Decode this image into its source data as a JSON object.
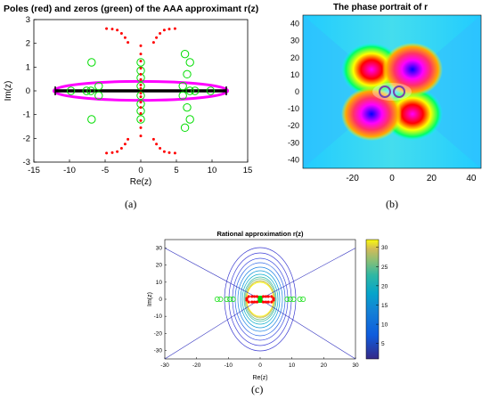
{
  "figure": {
    "captions": {
      "a": "(a)",
      "b": "(b)",
      "c": "(c)"
    }
  },
  "chart_data": [
    {
      "id": "a",
      "type": "scatter",
      "title": "Poles (red) and zeros (green) of the AAA approximant r(z)",
      "xlabel": "Re(z)",
      "ylabel": "Im(z)",
      "xlim": [
        -15,
        15
      ],
      "ylim": [
        -3,
        3
      ],
      "xticks": [
        "-15",
        "-10",
        "-5",
        "0",
        "5",
        "10",
        "15"
      ],
      "yticks": [
        "3",
        "2",
        "1",
        "0",
        "-1",
        "-2",
        "-3"
      ],
      "grid": false,
      "colors": {
        "poles": "#ff0000",
        "zeros": "#00dd00",
        "interval": "#000000",
        "contour": "#ff00ff"
      },
      "interval": [
        -12,
        12
      ],
      "contour_ellipse": {
        "center": [
          0,
          0
        ],
        "semi_axes": [
          12.2,
          0.4
        ]
      },
      "poles": [
        [
          -4.8,
          2.62
        ],
        [
          -4.0,
          2.6
        ],
        [
          -3.3,
          2.56
        ],
        [
          -2.7,
          2.42
        ],
        [
          -2.2,
          2.24
        ],
        [
          -1.8,
          2.04
        ],
        [
          4.8,
          2.62
        ],
        [
          4.0,
          2.6
        ],
        [
          3.3,
          2.56
        ],
        [
          2.7,
          2.42
        ],
        [
          2.2,
          2.24
        ],
        [
          1.8,
          2.04
        ],
        [
          -4.8,
          -2.62
        ],
        [
          -4.0,
          -2.6
        ],
        [
          -3.3,
          -2.56
        ],
        [
          -2.7,
          -2.42
        ],
        [
          -2.2,
          -2.24
        ],
        [
          -1.8,
          -2.04
        ],
        [
          4.8,
          -2.62
        ],
        [
          4.0,
          -2.6
        ],
        [
          3.3,
          -2.56
        ],
        [
          2.7,
          -2.42
        ],
        [
          2.2,
          -2.24
        ],
        [
          1.8,
          -2.04
        ],
        [
          0,
          1.9
        ],
        [
          0,
          1.55
        ],
        [
          0,
          1.25
        ],
        [
          0,
          0.95
        ],
        [
          0,
          0.7
        ],
        [
          0,
          0.48
        ],
        [
          0,
          0.25
        ],
        [
          0,
          0.1
        ],
        [
          0,
          -0.1
        ],
        [
          0,
          -0.25
        ],
        [
          0,
          -0.48
        ],
        [
          0,
          -0.7
        ],
        [
          0,
          -0.95
        ],
        [
          0,
          -1.25
        ],
        [
          0,
          -1.55
        ],
        [
          0,
          -1.9
        ]
      ],
      "zeros": [
        [
          -7.0,
          0
        ],
        [
          -7.6,
          0
        ],
        [
          -9.8,
          0
        ],
        [
          -6.9,
          1.2
        ],
        [
          -6.9,
          -1.2
        ],
        [
          -5.9,
          0.2
        ],
        [
          -5.9,
          -0.2
        ],
        [
          6.9,
          0
        ],
        [
          7.6,
          0
        ],
        [
          9.8,
          0
        ],
        [
          6.9,
          1.2
        ],
        [
          6.9,
          -1.2
        ],
        [
          5.9,
          0.2
        ],
        [
          5.9,
          -0.2
        ],
        [
          6.2,
          1.55
        ],
        [
          6.2,
          -1.55
        ],
        [
          6.5,
          0.7
        ],
        [
          6.5,
          -0.7
        ],
        [
          0,
          1.2
        ],
        [
          0,
          0.85
        ],
        [
          0,
          0.55
        ],
        [
          0,
          0.2
        ],
        [
          0,
          -0.2
        ],
        [
          0,
          -0.55
        ],
        [
          0,
          -0.85
        ],
        [
          0,
          -1.2
        ]
      ]
    },
    {
      "id": "b",
      "type": "heatmap",
      "title": "The phase portrait of r",
      "xlim": [
        -45,
        45
      ],
      "ylim": [
        -45,
        45
      ],
      "xticks": [
        "-20",
        "0",
        "20",
        "40"
      ],
      "yticks": [
        "-40",
        "-30",
        "-20",
        "-10",
        "0",
        "10",
        "20",
        "30",
        "40"
      ],
      "colormap": "hsv (phase of r(z))"
    },
    {
      "id": "c",
      "type": "scatter",
      "title": "Rational approximation r(z)",
      "xlabel": "Re(z)",
      "ylabel": "Im(z)",
      "xlim": [
        -30,
        30
      ],
      "ylim": [
        -35,
        35
      ],
      "xticks": [
        "-30",
        "-20",
        "-10",
        "0",
        "10",
        "20",
        "30"
      ],
      "yticks": [
        "30",
        "20",
        "10",
        "0",
        "-10",
        "-20",
        "-30"
      ],
      "colorbar_ticks": [
        "30",
        "25",
        "20",
        "15",
        "10",
        "5"
      ],
      "colorbar_range": [
        1,
        32
      ],
      "colormap": "parula",
      "poles": [
        [
          -3.6,
          1.6
        ],
        [
          -2.6,
          1.6
        ],
        [
          -1.8,
          1.6
        ],
        [
          -1,
          1.6
        ],
        [
          1,
          1.6
        ],
        [
          1.8,
          1.6
        ],
        [
          2.6,
          1.6
        ],
        [
          3.6,
          1.6
        ],
        [
          -3.6,
          -1.6
        ],
        [
          -2.6,
          -1.6
        ],
        [
          -1.8,
          -1.6
        ],
        [
          -1,
          -1.6
        ],
        [
          1,
          -1.6
        ],
        [
          1.8,
          -1.6
        ],
        [
          2.6,
          -1.6
        ],
        [
          3.6,
          -1.6
        ],
        [
          -4.2,
          0.5
        ],
        [
          -4.2,
          -0.5
        ],
        [
          4.2,
          0.5
        ],
        [
          4.2,
          -0.5
        ]
      ],
      "zeros": [
        [
          -8.5,
          0
        ],
        [
          -9.5,
          0
        ],
        [
          -10.5,
          0
        ],
        [
          -12.5,
          0
        ],
        [
          -13.5,
          0
        ],
        [
          8.5,
          0
        ],
        [
          9.5,
          0
        ],
        [
          10.5,
          0
        ],
        [
          12.5,
          0
        ],
        [
          13.5,
          0
        ],
        [
          0,
          0.6
        ],
        [
          0,
          -0.6
        ]
      ]
    }
  ]
}
